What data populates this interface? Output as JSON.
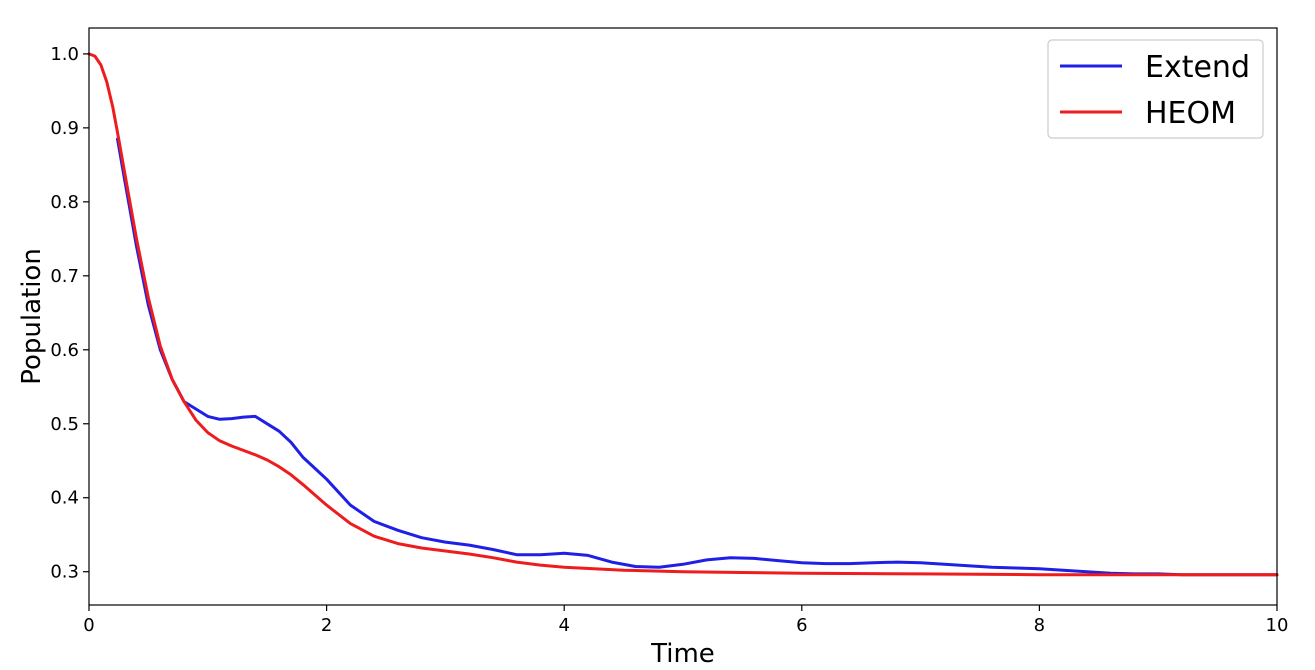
{
  "chart_data": {
    "type": "line",
    "title": "",
    "xlabel": "Time",
    "ylabel": "Population",
    "xlim": [
      0,
      10
    ],
    "ylim": [
      0.255,
      1.035
    ],
    "xticks": [
      0,
      2,
      4,
      6,
      8,
      10
    ],
    "yticks": [
      0.3,
      0.4,
      0.5,
      0.6,
      0.7,
      0.8,
      0.9,
      1.0
    ],
    "grid": false,
    "legend_position": "top-right",
    "series": [
      {
        "name": "Extend",
        "color": "#1f1fe6",
        "x": [
          0.24,
          0.3,
          0.4,
          0.5,
          0.6,
          0.7,
          0.8,
          0.9,
          1.0,
          1.1,
          1.2,
          1.3,
          1.4,
          1.5,
          1.6,
          1.7,
          1.8,
          1.9,
          2.0,
          2.2,
          2.4,
          2.6,
          2.8,
          3.0,
          3.2,
          3.4,
          3.6,
          3.8,
          4.0,
          4.2,
          4.4,
          4.6,
          4.8,
          5.0,
          5.2,
          5.4,
          5.6,
          5.8,
          6.0,
          6.2,
          6.4,
          6.6,
          6.8,
          7.0,
          7.2,
          7.4,
          7.6,
          7.8,
          8.0,
          8.2,
          8.4,
          8.6,
          8.8,
          9.0,
          9.2,
          9.5,
          10.0
        ],
        "y": [
          0.885,
          0.83,
          0.74,
          0.66,
          0.6,
          0.56,
          0.53,
          0.52,
          0.51,
          0.506,
          0.507,
          0.509,
          0.51,
          0.5,
          0.49,
          0.475,
          0.455,
          0.44,
          0.425,
          0.39,
          0.368,
          0.356,
          0.346,
          0.34,
          0.336,
          0.33,
          0.323,
          0.323,
          0.325,
          0.322,
          0.313,
          0.307,
          0.306,
          0.31,
          0.316,
          0.319,
          0.318,
          0.315,
          0.312,
          0.311,
          0.311,
          0.312,
          0.313,
          0.312,
          0.31,
          0.308,
          0.306,
          0.305,
          0.304,
          0.302,
          0.3,
          0.298,
          0.297,
          0.297,
          0.296,
          0.296,
          0.296
        ]
      },
      {
        "name": "HEOM",
        "color": "#ee1c1c",
        "x": [
          0.0,
          0.05,
          0.1,
          0.15,
          0.2,
          0.25,
          0.3,
          0.4,
          0.5,
          0.6,
          0.7,
          0.8,
          0.9,
          1.0,
          1.1,
          1.2,
          1.3,
          1.4,
          1.5,
          1.6,
          1.7,
          1.8,
          1.9,
          2.0,
          2.2,
          2.4,
          2.6,
          2.8,
          3.0,
          3.2,
          3.4,
          3.6,
          3.8,
          4.0,
          4.5,
          5.0,
          5.5,
          6.0,
          7.0,
          8.0,
          9.0,
          10.0
        ],
        "y": [
          1.0,
          0.997,
          0.985,
          0.962,
          0.928,
          0.885,
          0.84,
          0.75,
          0.67,
          0.605,
          0.56,
          0.53,
          0.505,
          0.488,
          0.477,
          0.47,
          0.464,
          0.458,
          0.451,
          0.442,
          0.431,
          0.418,
          0.404,
          0.39,
          0.365,
          0.348,
          0.338,
          0.332,
          0.328,
          0.324,
          0.319,
          0.313,
          0.309,
          0.306,
          0.302,
          0.3,
          0.299,
          0.298,
          0.297,
          0.296,
          0.296,
          0.296
        ]
      }
    ]
  }
}
